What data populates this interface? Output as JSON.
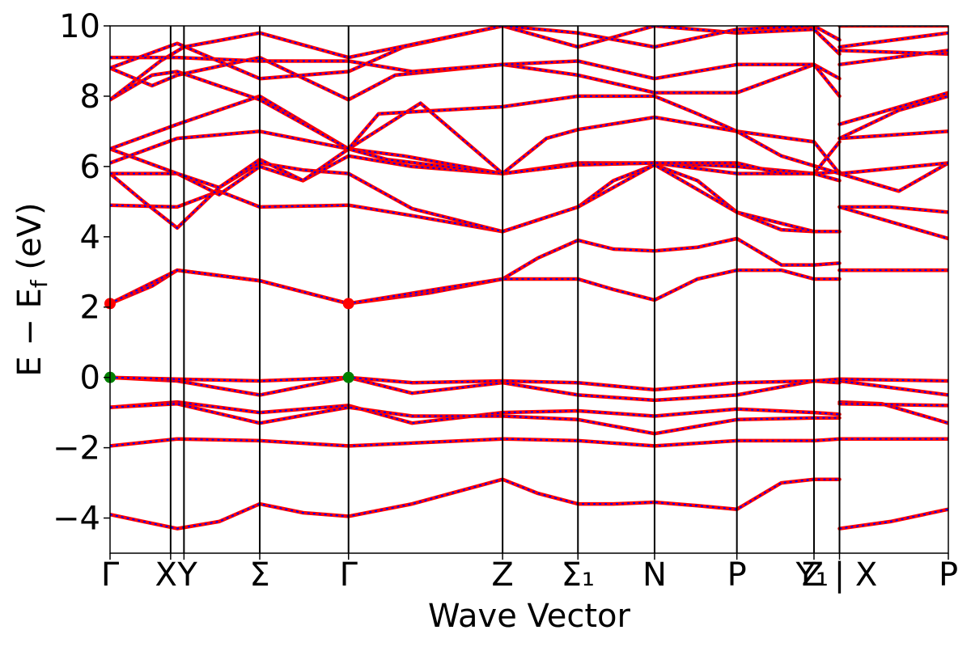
{
  "chart_data": {
    "type": "line",
    "title": "",
    "xlabel": "Wave Vector",
    "ylabel": "E − E_f (eV)",
    "ylabel_main": "E − E",
    "ylabel_sub": "f",
    "ylabel_unit": " (eV)",
    "ylim": [
      -5,
      10
    ],
    "yticks": [
      -4,
      -2,
      0,
      2,
      4,
      6,
      8,
      10
    ],
    "ytick_labels": [
      "−4",
      "−2",
      "0",
      "2",
      "4",
      "6",
      "8",
      "10"
    ],
    "grid": false,
    "colors": {
      "bands": "#ff0000",
      "bands_overlay": "#0000ff",
      "cbm_marker": "#ff0000",
      "vbm_marker": "#008000",
      "divider": "#000000"
    },
    "k_points": [
      {
        "label": "Γ",
        "x": 0.0
      },
      {
        "label": "X",
        "x": 0.722
      },
      {
        "label": "Y",
        "x": 0.881
      },
      {
        "label": "Σ",
        "x": 1.784
      },
      {
        "label": "Γ",
        "x": 2.842
      },
      {
        "label": "Z",
        "x": 4.678
      },
      {
        "label": "Σ₁",
        "x": 5.576
      },
      {
        "label": "N",
        "x": 6.489
      },
      {
        "label": "P",
        "x": 7.47
      },
      {
        "label": "Y₁",
        "x": 8.389
      },
      {
        "label": "Z",
        "x": 8.693
      },
      {
        "label": "X",
        "x": 8.693
      },
      {
        "label": "P",
        "x": 9.99
      }
    ],
    "tick_labels": [
      "Γ",
      "X",
      "Y",
      "Σ",
      "Γ",
      "Z",
      "Σ₁",
      "N",
      "P",
      "Y₁",
      "Z | X",
      "P"
    ],
    "xlim": [
      0.0,
      9.99
    ],
    "band_gap_markers": {
      "cbm": [
        {
          "x": 0.0,
          "y": 2.1
        },
        {
          "x": 2.842,
          "y": 2.1
        }
      ],
      "vbm": [
        {
          "x": 0.0,
          "y": 0.0
        },
        {
          "x": 2.842,
          "y": 0.0
        }
      ]
    },
    "series": [
      {
        "values": [
          [
            0.0,
            -3.9
          ],
          [
            0.4,
            -4.1
          ],
          [
            0.8,
            -4.3
          ],
          [
            1.3,
            -4.1
          ],
          [
            1.784,
            -3.6
          ],
          [
            2.3,
            -3.85
          ],
          [
            2.842,
            -3.95
          ],
          [
            3.6,
            -3.6
          ],
          [
            4.678,
            -2.9
          ],
          [
            5.1,
            -3.3
          ],
          [
            5.576,
            -3.6
          ],
          [
            6.0,
            -3.6
          ],
          [
            6.489,
            -3.55
          ],
          [
            7.0,
            -3.65
          ],
          [
            7.47,
            -3.75
          ],
          [
            8.0,
            -3.0
          ],
          [
            8.389,
            -2.9
          ],
          [
            8.693,
            -2.9
          ],
          [
            8.693,
            -4.3
          ],
          [
            9.3,
            -4.1
          ],
          [
            9.99,
            -3.75
          ]
        ]
      },
      {
        "values": [
          [
            0.0,
            -1.95
          ],
          [
            0.8,
            -1.75
          ],
          [
            1.784,
            -1.8
          ],
          [
            2.842,
            -1.95
          ],
          [
            4.678,
            -1.75
          ],
          [
            5.576,
            -1.8
          ],
          [
            6.489,
            -1.95
          ],
          [
            7.47,
            -1.8
          ],
          [
            8.389,
            -1.8
          ],
          [
            8.693,
            -1.75
          ],
          [
            9.99,
            -1.75
          ]
        ]
      },
      {
        "values": [
          [
            0.0,
            -0.85
          ],
          [
            0.8,
            -0.7
          ],
          [
            1.784,
            -1.0
          ],
          [
            2.842,
            -0.8
          ],
          [
            3.6,
            -1.3
          ],
          [
            4.678,
            -1.0
          ],
          [
            5.576,
            -0.95
          ],
          [
            6.489,
            -1.1
          ],
          [
            7.47,
            -0.9
          ],
          [
            8.389,
            -1.0
          ],
          [
            8.693,
            -1.05
          ],
          [
            8.693,
            -0.7
          ],
          [
            9.2,
            -0.75
          ],
          [
            9.99,
            -1.3
          ]
        ]
      },
      {
        "values": [
          [
            0.0,
            -0.85
          ],
          [
            0.8,
            -0.75
          ],
          [
            1.784,
            -1.3
          ],
          [
            2.842,
            -0.85
          ],
          [
            3.6,
            -1.1
          ],
          [
            4.678,
            -1.1
          ],
          [
            5.576,
            -1.2
          ],
          [
            6.489,
            -1.6
          ],
          [
            7.47,
            -1.2
          ],
          [
            8.389,
            -1.15
          ],
          [
            8.693,
            -1.15
          ],
          [
            8.693,
            -0.75
          ],
          [
            9.99,
            -0.8
          ]
        ]
      },
      {
        "values": [
          [
            0.0,
            0.0
          ],
          [
            0.8,
            -0.1
          ],
          [
            1.784,
            -0.5
          ],
          [
            2.842,
            0.0
          ],
          [
            3.6,
            -0.45
          ],
          [
            4.678,
            -0.15
          ],
          [
            5.576,
            -0.5
          ],
          [
            6.489,
            -0.65
          ],
          [
            7.47,
            -0.5
          ],
          [
            8.389,
            -0.1
          ],
          [
            8.693,
            -0.15
          ],
          [
            8.693,
            -0.1
          ],
          [
            9.99,
            -0.5
          ]
        ]
      },
      {
        "values": [
          [
            0.0,
            0.0
          ],
          [
            0.8,
            -0.05
          ],
          [
            1.784,
            -0.1
          ],
          [
            2.842,
            0.0
          ],
          [
            3.6,
            -0.15
          ],
          [
            4.678,
            -0.1
          ],
          [
            5.576,
            -0.15
          ],
          [
            6.489,
            -0.35
          ],
          [
            7.47,
            -0.15
          ],
          [
            8.389,
            -0.1
          ],
          [
            8.693,
            -0.05
          ],
          [
            8.693,
            -0.05
          ],
          [
            9.99,
            -0.1
          ]
        ]
      },
      {
        "values": [
          [
            0.0,
            2.1
          ],
          [
            0.5,
            2.6
          ],
          [
            0.8,
            3.05
          ],
          [
            1.784,
            2.75
          ],
          [
            2.842,
            2.1
          ],
          [
            3.8,
            2.4
          ],
          [
            4.678,
            2.8
          ],
          [
            5.1,
            3.4
          ],
          [
            5.576,
            3.9
          ],
          [
            6.0,
            3.65
          ],
          [
            6.489,
            3.6
          ],
          [
            7.0,
            3.7
          ],
          [
            7.47,
            3.95
          ],
          [
            8.0,
            3.2
          ],
          [
            8.389,
            3.2
          ],
          [
            8.693,
            3.25
          ],
          [
            8.693,
            3.05
          ],
          [
            9.99,
            3.05
          ]
        ]
      },
      {
        "values": [
          [
            0.0,
            2.1
          ],
          [
            0.8,
            3.05
          ],
          [
            1.784,
            2.75
          ],
          [
            2.842,
            2.1
          ],
          [
            4.0,
            2.55
          ],
          [
            4.678,
            2.8
          ],
          [
            5.576,
            2.8
          ],
          [
            6.0,
            2.5
          ],
          [
            6.489,
            2.2
          ],
          [
            7.0,
            2.8
          ],
          [
            7.47,
            3.05
          ],
          [
            8.0,
            3.05
          ],
          [
            8.389,
            2.8
          ],
          [
            8.693,
            2.8
          ],
          [
            8.693,
            3.05
          ],
          [
            9.99,
            3.05
          ]
        ]
      },
      {
        "values": [
          [
            0.0,
            4.9
          ],
          [
            0.8,
            4.85
          ],
          [
            1.3,
            5.3
          ],
          [
            1.784,
            4.85
          ],
          [
            2.842,
            4.9
          ],
          [
            3.6,
            4.6
          ],
          [
            4.678,
            4.15
          ],
          [
            5.576,
            4.85
          ],
          [
            6.0,
            5.6
          ],
          [
            6.489,
            6.05
          ],
          [
            7.0,
            5.6
          ],
          [
            7.47,
            4.7
          ],
          [
            8.0,
            4.2
          ],
          [
            8.389,
            4.15
          ],
          [
            8.693,
            4.15
          ],
          [
            8.693,
            4.85
          ],
          [
            9.3,
            4.85
          ],
          [
            9.99,
            4.7
          ]
        ]
      },
      {
        "values": [
          [
            0.0,
            5.8
          ],
          [
            0.4,
            5.0
          ],
          [
            0.8,
            4.25
          ],
          [
            1.3,
            5.4
          ],
          [
            1.784,
            6.1
          ],
          [
            2.3,
            5.9
          ],
          [
            2.842,
            5.8
          ],
          [
            3.6,
            4.8
          ],
          [
            4.678,
            4.15
          ],
          [
            5.576,
            4.85
          ],
          [
            6.489,
            6.05
          ],
          [
            7.47,
            4.7
          ],
          [
            8.389,
            4.15
          ],
          [
            8.693,
            4.15
          ],
          [
            8.693,
            4.85
          ],
          [
            9.99,
            3.95
          ]
        ]
      },
      {
        "values": [
          [
            0.0,
            5.8
          ],
          [
            0.8,
            5.8
          ],
          [
            1.3,
            5.2
          ],
          [
            1.784,
            6.0
          ],
          [
            2.3,
            5.6
          ],
          [
            2.842,
            6.3
          ],
          [
            3.6,
            6.0
          ],
          [
            4.678,
            5.8
          ],
          [
            5.576,
            6.05
          ],
          [
            6.489,
            6.1
          ],
          [
            7.47,
            6.0
          ],
          [
            8.389,
            5.8
          ],
          [
            8.693,
            5.85
          ],
          [
            8.693,
            5.8
          ],
          [
            9.4,
            5.3
          ],
          [
            9.99,
            6.1
          ]
        ]
      },
      {
        "values": [
          [
            0.0,
            6.5
          ],
          [
            0.8,
            5.8
          ],
          [
            1.3,
            5.4
          ],
          [
            1.784,
            6.2
          ],
          [
            2.3,
            5.6
          ],
          [
            2.842,
            6.5
          ],
          [
            3.5,
            6.3
          ],
          [
            4.678,
            5.8
          ],
          [
            5.576,
            6.1
          ],
          [
            6.489,
            6.1
          ],
          [
            7.47,
            5.8
          ],
          [
            8.389,
            5.8
          ],
          [
            8.693,
            5.6
          ],
          [
            8.693,
            5.8
          ],
          [
            9.99,
            6.1
          ]
        ]
      },
      {
        "values": [
          [
            0.0,
            6.1
          ],
          [
            0.8,
            6.8
          ],
          [
            1.784,
            7.0
          ],
          [
            2.842,
            6.5
          ],
          [
            3.3,
            6.2
          ],
          [
            4.678,
            5.8
          ],
          [
            5.576,
            6.05
          ],
          [
            6.489,
            6.1
          ],
          [
            7.47,
            6.1
          ],
          [
            8.0,
            5.8
          ],
          [
            8.389,
            5.8
          ],
          [
            8.693,
            6.7
          ],
          [
            8.693,
            6.8
          ],
          [
            9.99,
            7.0
          ]
        ]
      },
      {
        "values": [
          [
            0.0,
            6.5
          ],
          [
            0.8,
            7.2
          ],
          [
            1.784,
            8.0
          ],
          [
            2.842,
            6.5
          ],
          [
            3.7,
            7.8
          ],
          [
            4.678,
            5.8
          ],
          [
            5.2,
            6.8
          ],
          [
            5.576,
            7.05
          ],
          [
            6.489,
            7.4
          ],
          [
            7.47,
            7.0
          ],
          [
            8.389,
            6.7
          ],
          [
            8.693,
            5.8
          ],
          [
            8.693,
            6.8
          ],
          [
            9.4,
            7.6
          ],
          [
            9.99,
            8.0
          ]
        ]
      },
      {
        "values": [
          [
            0.0,
            7.9
          ],
          [
            0.5,
            8.6
          ],
          [
            0.8,
            8.7
          ],
          [
            1.784,
            7.9
          ],
          [
            2.842,
            6.5
          ],
          [
            3.2,
            7.5
          ],
          [
            4.678,
            7.7
          ],
          [
            5.576,
            8.0
          ],
          [
            6.489,
            8.0
          ],
          [
            7.0,
            7.5
          ],
          [
            7.47,
            7.0
          ],
          [
            8.0,
            6.3
          ],
          [
            8.693,
            5.8
          ],
          [
            8.693,
            7.2
          ],
          [
            9.99,
            8.1
          ]
        ]
      },
      {
        "values": [
          [
            0.0,
            8.8
          ],
          [
            0.5,
            8.3
          ],
          [
            0.8,
            8.6
          ],
          [
            1.784,
            9.1
          ],
          [
            2.842,
            7.9
          ],
          [
            3.4,
            8.6
          ],
          [
            4.678,
            8.9
          ],
          [
            5.576,
            8.6
          ],
          [
            6.489,
            8.1
          ],
          [
            7.47,
            8.1
          ],
          [
            8.389,
            8.9
          ],
          [
            8.693,
            8.5
          ],
          [
            8.693,
            8.9
          ],
          [
            9.99,
            9.3
          ]
        ]
      },
      {
        "values": [
          [
            0.0,
            9.1
          ],
          [
            0.8,
            9.1
          ],
          [
            1.784,
            9.0
          ],
          [
            2.842,
            9.0
          ],
          [
            3.6,
            8.7
          ],
          [
            4.678,
            8.9
          ],
          [
            5.576,
            9.0
          ],
          [
            6.489,
            8.5
          ],
          [
            7.47,
            8.9
          ],
          [
            8.389,
            8.9
          ],
          [
            8.693,
            8.0
          ],
          [
            8.693,
            9.3
          ],
          [
            9.99,
            9.2
          ]
        ]
      },
      {
        "values": [
          [
            0.0,
            8.8
          ],
          [
            0.8,
            9.5
          ],
          [
            1.784,
            8.5
          ],
          [
            2.842,
            8.7
          ],
          [
            3.5,
            9.4
          ],
          [
            4.678,
            10.0
          ],
          [
            5.576,
            9.4
          ],
          [
            6.489,
            10.0
          ],
          [
            7.47,
            9.8
          ],
          [
            8.389,
            9.9
          ],
          [
            8.693,
            9.2
          ],
          [
            8.693,
            9.4
          ],
          [
            9.99,
            9.8
          ]
        ]
      },
      {
        "values": [
          [
            0.0,
            7.9
          ],
          [
            0.6,
            9.0
          ],
          [
            0.881,
            9.4
          ],
          [
            1.784,
            9.8
          ],
          [
            2.842,
            9.1
          ],
          [
            4.678,
            10.0
          ],
          [
            5.576,
            9.8
          ],
          [
            6.489,
            9.4
          ],
          [
            7.47,
            9.9
          ],
          [
            8.389,
            10.0
          ],
          [
            8.693,
            9.6
          ],
          [
            8.693,
            10.0
          ],
          [
            9.99,
            10.0
          ]
        ]
      }
    ]
  }
}
